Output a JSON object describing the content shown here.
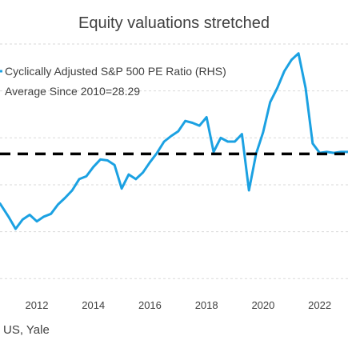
{
  "chart_data": {
    "type": "line",
    "title": "Equity valuations stretched",
    "xlabel": "",
    "ylabel": "",
    "xlim": [
      2010.7,
      2023.0
    ],
    "ylim": [
      14,
      40
    ],
    "grid": true,
    "legend_placement": "top-left",
    "x_ticks": [
      2012,
      2014,
      2016,
      2018,
      2020,
      2022
    ],
    "x_tick_labels": [
      "2012",
      "2014",
      "2016",
      "2018",
      "2020",
      "2022"
    ],
    "series": [
      {
        "name": "Cyclically Adjusted S&P 500 PE Ratio (RHS)",
        "color": "#1BA1E2",
        "style": "solid",
        "x": [
          2010.7,
          2011.0,
          2011.25,
          2011.5,
          2011.75,
          2012.0,
          2012.25,
          2012.5,
          2012.75,
          2013.0,
          2013.25,
          2013.5,
          2013.75,
          2014.0,
          2014.25,
          2014.5,
          2014.75,
          2015.0,
          2015.25,
          2015.5,
          2015.75,
          2016.0,
          2016.25,
          2016.5,
          2016.75,
          2017.0,
          2017.25,
          2017.5,
          2017.75,
          2018.0,
          2018.25,
          2018.5,
          2018.75,
          2019.0,
          2019.25,
          2019.5,
          2019.75,
          2020.0,
          2020.25,
          2020.5,
          2020.75,
          2021.0,
          2021.25,
          2021.5,
          2021.75,
          2022.0,
          2022.25,
          2022.5,
          2022.75,
          2023.0
        ],
        "y": [
          23.0,
          21.6,
          20.3,
          21.3,
          21.8,
          21.1,
          21.6,
          21.9,
          22.9,
          23.6,
          24.4,
          25.6,
          25.9,
          26.9,
          27.7,
          27.6,
          27.1,
          24.6,
          26.1,
          25.6,
          26.3,
          27.4,
          28.4,
          29.6,
          30.2,
          30.7,
          31.8,
          31.6,
          31.3,
          32.2,
          28.5,
          30.0,
          29.6,
          29.6,
          30.4,
          24.4,
          28.3,
          30.6,
          33.8,
          35.3,
          37.1,
          38.3,
          39.0,
          35.3,
          29.4,
          28.4,
          28.5,
          28.4,
          28.5,
          28.5
        ]
      },
      {
        "name": "Average Since 2010=28.29",
        "color": "#000000",
        "style": "dashed",
        "x": [
          2010.7,
          2023.0
        ],
        "y": [
          28.29,
          28.29
        ]
      }
    ]
  },
  "footer": {
    "source_text": "US, Yale"
  }
}
